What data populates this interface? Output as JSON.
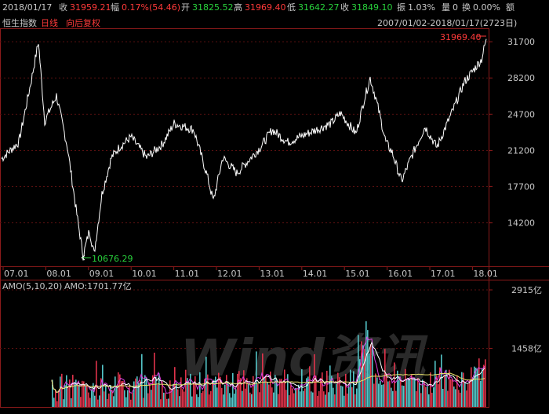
{
  "quote": {
    "date": "2018/01/17",
    "close_label": "收",
    "close_value": "31959.21",
    "change_label": "幅",
    "change_value": "0.17%(54.46)",
    "open_label": "开",
    "open_value": "31825.52",
    "high_label": "高",
    "high_value": "31969.40",
    "low_label": "低",
    "low_value": "31642.27",
    "receive_label": "收",
    "receive_value": "31849.10",
    "amplitude_label": "振",
    "amplitude_value": "1.03%",
    "volume_label": "量",
    "volume_value": "0",
    "turnover_label": "换",
    "turnover_value": "0.00%",
    "amount_label": "额",
    "amount_value": ""
  },
  "chart_header": {
    "index_name": "恒生指数",
    "period": "日线",
    "adjust": "向后复权",
    "range": "2007/01/02-2018/01/17(2723日)"
  },
  "price_panel": {
    "high_marker": "31969.40",
    "low_marker": "10676.29",
    "y_ticks": [
      "31700",
      "28200",
      "24700",
      "21200",
      "17700",
      "14200"
    ],
    "x_ticks": [
      "07.01",
      "08.01",
      "09.01",
      "10.01",
      "11.01",
      "12.01",
      "13.01",
      "14.01",
      "15.01",
      "16.01",
      "17.01",
      "18.01"
    ]
  },
  "volume_panel": {
    "label": "AMO(5,10,20)",
    "value_label": "AMO:1701.77亿",
    "y_ticks": [
      "2915亿",
      "1458亿"
    ]
  },
  "watermark": "Wind资讯",
  "colors": {
    "up": "#ff3a3a",
    "down": "#28d23c",
    "grid": "#8b1a1a",
    "price_line": "#ffffff",
    "vol_up": "#e0334b",
    "vol_down": "#54c5c8",
    "ma_yellow": "#e9e36b",
    "ma_magenta": "#e040e0"
  },
  "chart_data": {
    "type": "line",
    "title": "恒生指数",
    "x": [
      "07.01",
      "08.01",
      "09.01",
      "10.01",
      "11.01",
      "12.01",
      "13.01",
      "14.01",
      "15.01",
      "16.01",
      "17.01",
      "18.01"
    ],
    "series": [
      {
        "values": [
          20400,
          27500,
          13000,
          21800,
          23000,
          19000,
          23200,
          22800,
          24500,
          20500,
          23000,
          31959
        ]
      }
    ],
    "ylim": [
      10000,
      33000
    ],
    "high": 31969.4,
    "low": 10676.29,
    "volume_ylim": [
      0,
      2915
    ]
  }
}
